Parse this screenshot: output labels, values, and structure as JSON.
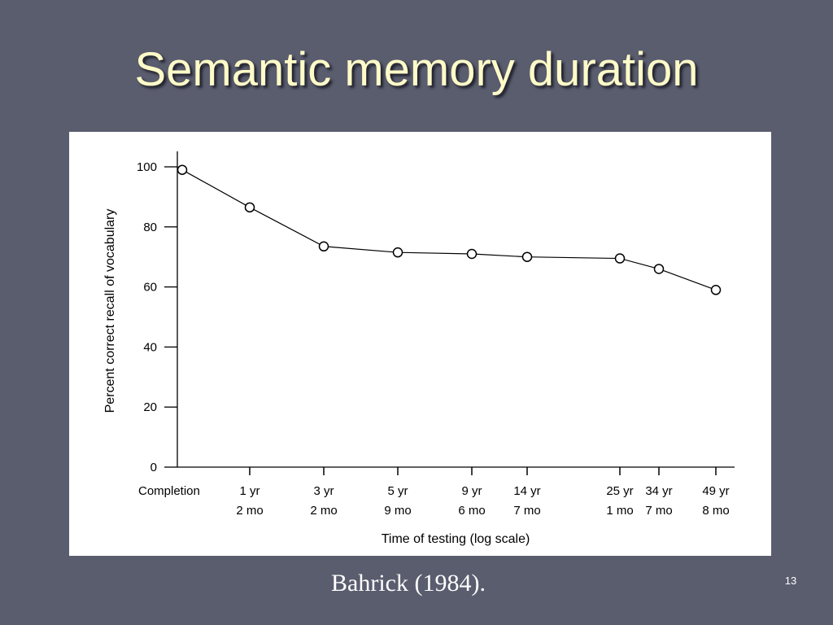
{
  "slide": {
    "title": "Semantic memory duration",
    "caption": "Bahrick (1984).",
    "number": "13"
  },
  "colors": {
    "background": "#5a5d6e",
    "title": "#fffbc8",
    "chart_line": "#000000"
  },
  "chart_data": {
    "type": "line",
    "title": "",
    "xlabel": "Time of testing (log scale)",
    "ylabel": "Percent correct recall of vocabulary",
    "ylim": [
      0,
      100
    ],
    "yticks": [
      0,
      20,
      40,
      60,
      80,
      100
    ],
    "x_log_scale": true,
    "grid": false,
    "categories": [
      [
        "Completion",
        ""
      ],
      [
        "1 yr",
        "2 mo"
      ],
      [
        "3 yr",
        "2 mo"
      ],
      [
        "5 yr",
        "9 mo"
      ],
      [
        "9 yr",
        "6 mo"
      ],
      [
        "14 yr",
        "7 mo"
      ],
      [
        "25 yr",
        "1 mo"
      ],
      [
        "34 yr",
        "7 mo"
      ],
      [
        "49 yr",
        "8 mo"
      ]
    ],
    "points": [
      {
        "time": "Completion",
        "value": 99
      },
      {
        "time": "1 yr 2 mo",
        "value": 86.5
      },
      {
        "time": "3 yr 2 mo",
        "value": 73.5
      },
      {
        "time": "5 yr 9 mo",
        "value": 71.5
      },
      {
        "time": "9 yr 6 mo",
        "value": 71
      },
      {
        "time": "14 yr 7 mo",
        "value": 70
      },
      {
        "time": "25 yr 1 mo",
        "value": 69.5
      },
      {
        "time": "34 yr 7 mo",
        "value": 66
      },
      {
        "time": "49 yr 8 mo",
        "value": 59
      }
    ]
  }
}
